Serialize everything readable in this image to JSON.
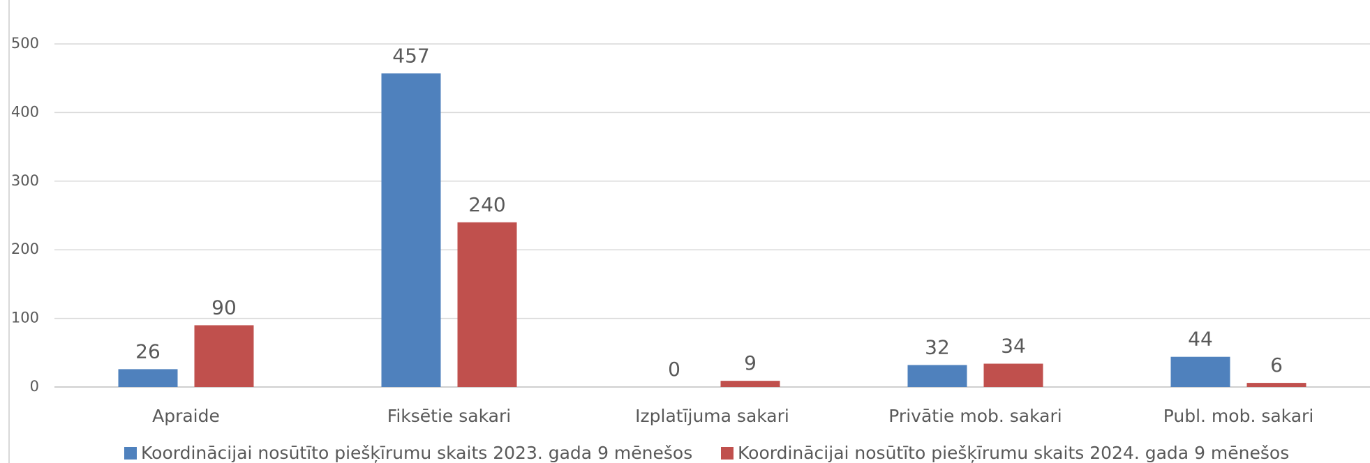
{
  "chart_data": {
    "type": "bar",
    "categories": [
      "Apraide",
      "Fiksētie sakari",
      "Izplatījuma sakari",
      "Privātie mob. sakari",
      "Publ. mob. sakari"
    ],
    "series": [
      {
        "name": "Koordinācijai nosūtīto piešķīrumu skaits 2023. gada 9 mēnešos",
        "color": "#4f81bd",
        "values": [
          26,
          457,
          0,
          32,
          44
        ]
      },
      {
        "name": "Koordinācijai nosūtīto piešķīrumu skaits 2024. gada 9 mēnešos",
        "color": "#c0504d",
        "values": [
          90,
          240,
          9,
          34,
          6
        ]
      }
    ],
    "ylim": [
      0,
      500
    ],
    "yticks": [
      0,
      100,
      200,
      300,
      400,
      500
    ],
    "grid": true,
    "legend": "bottom"
  }
}
